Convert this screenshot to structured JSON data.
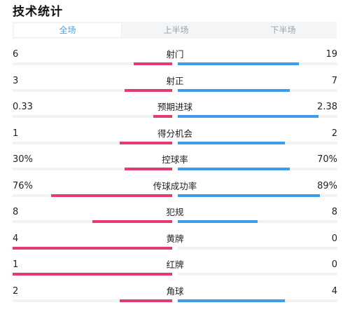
{
  "header": {
    "title": "技术统计"
  },
  "tabs": [
    {
      "label": "全场",
      "active": true
    },
    {
      "label": "上半场",
      "active": false
    },
    {
      "label": "下半场",
      "active": false
    }
  ],
  "colors": {
    "home": "#e33d6f",
    "away": "#3d9be9",
    "active_tab": "#4da3e8"
  },
  "stats": [
    {
      "name": "射门",
      "left": "6",
      "right": "19",
      "left_fill": 0.24,
      "right_fill": 0.76
    },
    {
      "name": "射正",
      "left": "3",
      "right": "7",
      "left_fill": 0.3,
      "right_fill": 0.7
    },
    {
      "name": "预期进球",
      "left": "0.33",
      "right": "2.38",
      "left_fill": 0.12,
      "right_fill": 0.88
    },
    {
      "name": "得分机会",
      "left": "1",
      "right": "2",
      "left_fill": 0.33,
      "right_fill": 0.67
    },
    {
      "name": "控球率",
      "left": "30%",
      "right": "70%",
      "left_fill": 0.3,
      "right_fill": 0.7
    },
    {
      "name": "传球成功率",
      "left": "76%",
      "right": "89%",
      "left_fill": 0.76,
      "right_fill": 0.89
    },
    {
      "name": "犯规",
      "left": "8",
      "right": "8",
      "left_fill": 0.5,
      "right_fill": 0.5
    },
    {
      "name": "黄牌",
      "left": "4",
      "right": "0",
      "left_fill": 1.0,
      "right_fill": 0.0
    },
    {
      "name": "红牌",
      "left": "1",
      "right": "0",
      "left_fill": 1.0,
      "right_fill": 0.0
    },
    {
      "name": "角球",
      "left": "2",
      "right": "4",
      "left_fill": 0.33,
      "right_fill": 0.67
    }
  ]
}
